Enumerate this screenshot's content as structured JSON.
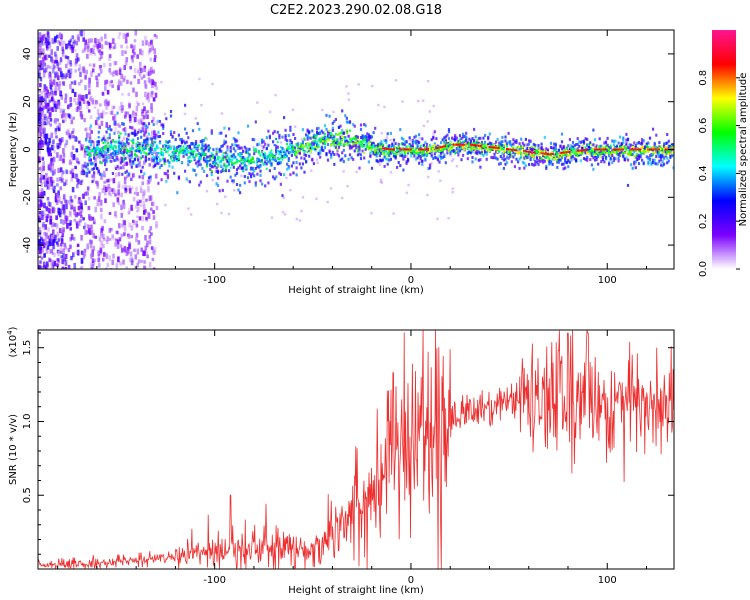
{
  "figure": {
    "title": "C2E2.2023.290.02.08.G18"
  },
  "chart_data": [
    {
      "type": "heatmap",
      "name": "spectrogram",
      "xlabel": "Height of straight line (km)",
      "ylabel": "Frequency (Hz)",
      "xlim": [
        -190,
        134
      ],
      "ylim": [
        -50,
        50
      ],
      "xticks": [
        -100,
        0,
        100
      ],
      "xtick_labels": [
        "-100",
        "0",
        "100"
      ],
      "yticks": [
        -40,
        -20,
        0,
        20,
        40
      ],
      "ytick_labels": [
        "-40",
        "-20",
        "0",
        "20",
        "40"
      ],
      "grid": false,
      "colorbar": {
        "label": "Normalized spectral amplitude",
        "range": [
          0,
          1
        ],
        "ticks": [
          0.0,
          0.2,
          0.4,
          0.6,
          0.8
        ],
        "tick_labels": [
          "0.0",
          "0.2",
          "0.4",
          "0.6",
          "0.8"
        ],
        "colors": [
          "#ffffff",
          "#7a00ff",
          "#0000ff",
          "#00ffff",
          "#00ff00",
          "#ffff00",
          "#ff0000",
          "#ff1493"
        ]
      },
      "ridge": {
        "description_points_x": [
          -165,
          -150,
          -130,
          -110,
          -95,
          -85,
          -70,
          -58,
          -50,
          -40,
          -30,
          -20,
          -10,
          0,
          10,
          20,
          30,
          40,
          50,
          60,
          70,
          80,
          90,
          100,
          110,
          120,
          134
        ],
        "description_points_freq": [
          0,
          1,
          0,
          -1,
          -5,
          -4,
          -2,
          1,
          3,
          5,
          4,
          1,
          0,
          0,
          0,
          2,
          2,
          1,
          0,
          -1,
          -2,
          -1,
          0,
          0,
          0,
          0,
          0
        ]
      }
    },
    {
      "type": "line",
      "name": "snr",
      "xlabel": "Height of straight line (km)",
      "ylabel": "SNR (10 * v/v)",
      "y_multiplier_label": "(x10",
      "y_multiplier_exp": "4",
      "y_multiplier_close": ")",
      "xlim": [
        -190,
        134
      ],
      "ylim": [
        0,
        1.62
      ],
      "xticks": [
        -100,
        0,
        100
      ],
      "xtick_labels": [
        "-100",
        "0",
        "100"
      ],
      "yticks": [
        0.5,
        1.0,
        1.5
      ],
      "ytick_labels": [
        "0.5",
        "1.0",
        "1.5"
      ],
      "grid": false,
      "color": "#ee2e2e",
      "trend_x": [
        -190,
        -170,
        -150,
        -130,
        -110,
        -100,
        -90,
        -75,
        -60,
        -50,
        -45,
        -40,
        -30,
        -20,
        -15,
        -10,
        0,
        10,
        20,
        30,
        40,
        50,
        60,
        70,
        80,
        90,
        100,
        110,
        120,
        134
      ],
      "trend_y": [
        0.02,
        0.03,
        0.05,
        0.07,
        0.1,
        0.13,
        0.15,
        0.14,
        0.13,
        0.12,
        0.2,
        0.3,
        0.42,
        0.55,
        0.62,
        0.7,
        0.85,
        0.95,
        1.0,
        1.07,
        1.1,
        1.12,
        1.14,
        1.15,
        1.15,
        1.13,
        1.12,
        1.12,
        1.1,
        1.1
      ],
      "peaks": [
        {
          "x": -92,
          "y": 0.5
        },
        {
          "x": -9,
          "y": 1.33
        },
        {
          "x": 80,
          "y": 1.6
        },
        {
          "x": 90,
          "y": 1.6
        },
        {
          "x": 75,
          "y": 1.48
        }
      ]
    }
  ]
}
